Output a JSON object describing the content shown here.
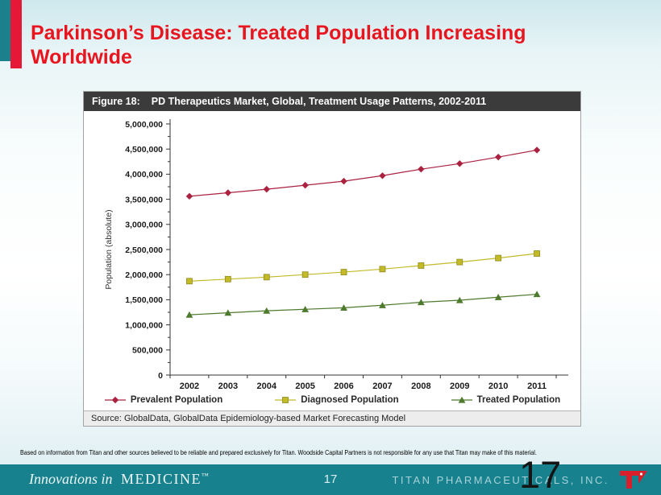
{
  "slide": {
    "title": "Parkinson’s Disease: Treated Population Increasing Worldwide",
    "disclaimer": "Based on information from Titan and other sources believed to be reliable and prepared exclusively for Titan. Woodside Capital Partners is not responsible for any use that Titan may make of this material.",
    "page_number": "17",
    "page_number_large": "17"
  },
  "figure": {
    "header_label": "Figure 18:",
    "header_title": "PD Therapeutics Market, Global, Treatment Usage Patterns, 2002-2011",
    "source": "Source: GlobalData, GlobalData Epidemiology-based Market Forecasting Model"
  },
  "footer": {
    "tagline_italic": "Innovations in",
    "tagline_caps": "MEDICINE",
    "tagline_tm": "™",
    "company": "TITAN PHARMACEUTICALS, INC.",
    "bar_color": "#17818d",
    "logo_color": "#d91f2b"
  },
  "chart_data": {
    "type": "line",
    "title": "PD Therapeutics Market, Global, Treatment Usage Patterns, 2002-2011",
    "xlabel": "",
    "ylabel": "Population (absolute)",
    "ylim": [
      0,
      5000000
    ],
    "ytick_step": 500000,
    "yminor_step": 250000,
    "grid": false,
    "legend_position": "bottom",
    "categories": [
      "2002",
      "2003",
      "2004",
      "2005",
      "2006",
      "2007",
      "2008",
      "2009",
      "2010",
      "2011"
    ],
    "series": [
      {
        "name": "Prevalent Population",
        "marker": "diamond",
        "color": "#aa2240",
        "values": [
          3560000,
          3630000,
          3700000,
          3780000,
          3860000,
          3970000,
          4100000,
          4210000,
          4340000,
          4480000
        ]
      },
      {
        "name": "Diagnosed Population",
        "marker": "square",
        "color": "#c3ba28",
        "values": [
          1870000,
          1910000,
          1950000,
          2000000,
          2050000,
          2110000,
          2180000,
          2250000,
          2330000,
          2420000
        ]
      },
      {
        "name": "Treated Population",
        "marker": "triangle",
        "color": "#4d7a2c",
        "values": [
          1200000,
          1240000,
          1280000,
          1310000,
          1340000,
          1390000,
          1450000,
          1490000,
          1550000,
          1610000
        ]
      }
    ]
  }
}
